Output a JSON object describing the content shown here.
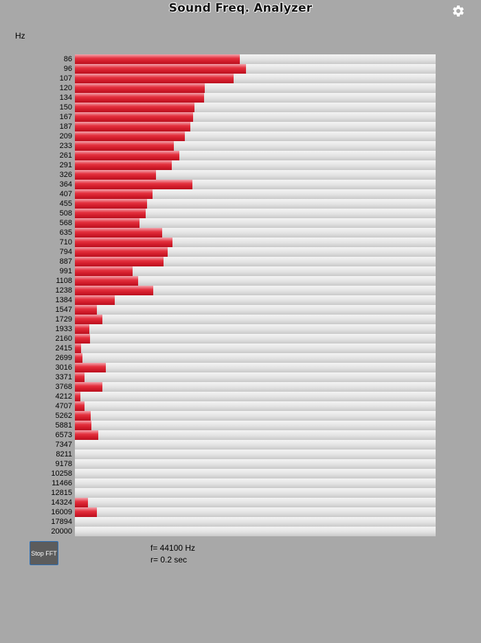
{
  "app": {
    "title": "Sound Freq. Analyzer",
    "unit_label": "Hz"
  },
  "icons": {
    "settings": "gear-icon"
  },
  "colors": {
    "background": "#a8a8a8",
    "bar_fill": "#d21c2b",
    "bar_track": "#e2e2e2",
    "button_bg": "#5c5c5c",
    "button_border": "#2c6fb6"
  },
  "controls": {
    "stop_label": "Stop FFT"
  },
  "info": {
    "sample_rate": "f= 44100 Hz",
    "refresh_rate": "r= 0.2 sec"
  },
  "chart_data": {
    "type": "bar",
    "orientation": "horizontal",
    "title": "Sound Freq. Analyzer",
    "ylabel": "Hz",
    "xlim": [
      0,
      1
    ],
    "categories": [
      "86",
      "96",
      "107",
      "120",
      "134",
      "150",
      "167",
      "187",
      "209",
      "233",
      "261",
      "291",
      "326",
      "364",
      "407",
      "455",
      "508",
      "568",
      "635",
      "710",
      "794",
      "887",
      "991",
      "1108",
      "1238",
      "1384",
      "1547",
      "1729",
      "1933",
      "2160",
      "2415",
      "2699",
      "3016",
      "3371",
      "3768",
      "4212",
      "4707",
      "5262",
      "5881",
      "6573",
      "7347",
      "8211",
      "9178",
      "10258",
      "11466",
      "12815",
      "14324",
      "16009",
      "17894",
      "20000"
    ],
    "values": [
      0.457,
      0.474,
      0.44,
      0.36,
      0.358,
      0.331,
      0.328,
      0.32,
      0.304,
      0.274,
      0.29,
      0.268,
      0.225,
      0.326,
      0.215,
      0.2,
      0.196,
      0.179,
      0.242,
      0.27,
      0.257,
      0.246,
      0.16,
      0.175,
      0.217,
      0.11,
      0.06,
      0.076,
      0.04,
      0.041,
      0.017,
      0.021,
      0.085,
      0.027,
      0.077,
      0.015,
      0.027,
      0.043,
      0.045,
      0.065,
      0,
      0,
      0,
      0,
      0,
      0,
      0.037,
      0.061,
      0,
      0
    ]
  }
}
